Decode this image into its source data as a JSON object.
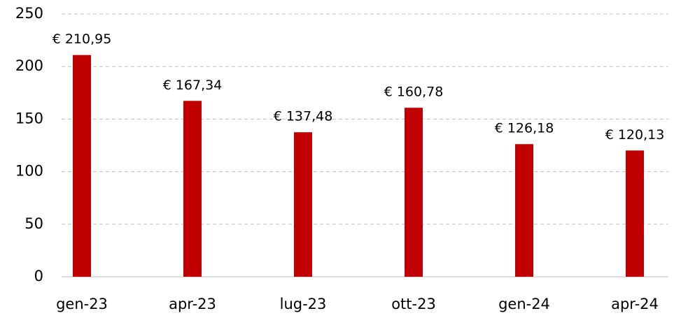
{
  "chart_data": {
    "type": "bar",
    "categories": [
      "gen-23",
      "apr-23",
      "lug-23",
      "ott-23",
      "gen-24",
      "apr-24"
    ],
    "values": [
      210.95,
      167.34,
      137.48,
      160.78,
      126.18,
      120.13
    ],
    "value_labels": [
      "€ 210,95",
      "€ 167,34",
      "€ 137,48",
      "€ 160,78",
      "€ 126,18",
      "€ 120,13"
    ],
    "color": "#c00000",
    "ylim": [
      0,
      250
    ],
    "yticks": [
      0,
      50,
      100,
      150,
      200,
      250
    ],
    "grid": true
  }
}
